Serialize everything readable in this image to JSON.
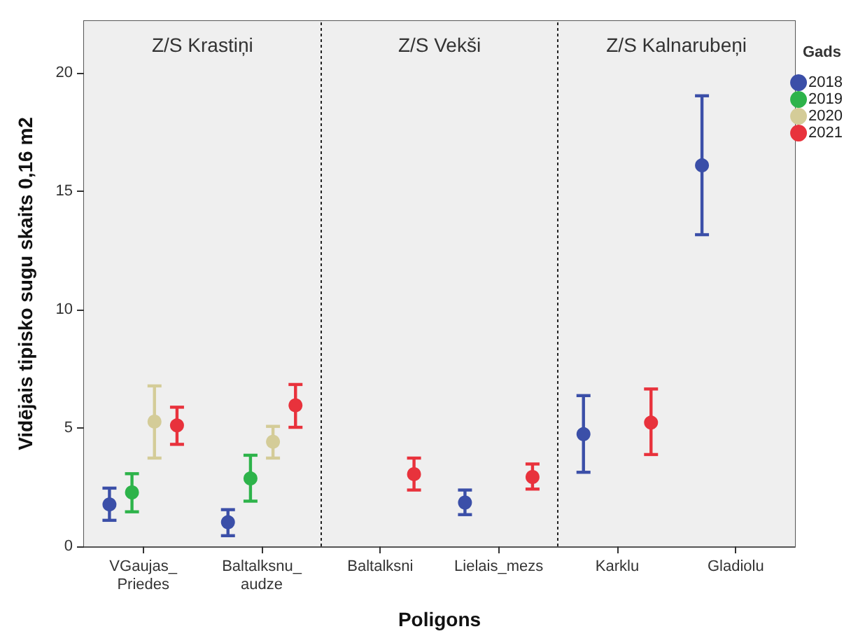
{
  "chart_data": {
    "type": "scatter",
    "xlabel": "Poligons",
    "ylabel": "Vidējais tipisko sugu skaits 0,16 m2",
    "legend_title": "Gads",
    "categories": [
      "VGaujas_\nPriedes",
      "Baltalksnu_\naudze",
      "Baltalksni",
      "Lielais_mezs",
      "Karklu",
      "Gladiolu"
    ],
    "series": [
      {
        "name": "2018",
        "color": "#3b4fa8",
        "values": [
          1.77,
          1.02,
          null,
          1.85,
          4.74,
          16.1
        ],
        "errors": [
          [
            1.1,
            2.46
          ],
          [
            0.45,
            1.55
          ],
          null,
          [
            1.34,
            2.38
          ],
          [
            3.13,
            6.37
          ],
          [
            13.17,
            19.04
          ]
        ]
      },
      {
        "name": "2019",
        "color": "#2db34a",
        "values": [
          2.28,
          2.87,
          null,
          null,
          null,
          null
        ],
        "errors": [
          [
            1.46,
            3.07
          ],
          [
            1.91,
            3.85
          ],
          null,
          null,
          null,
          null
        ]
      },
      {
        "name": "2020",
        "color": "#d4cc98",
        "values": [
          5.27,
          4.42,
          null,
          null,
          null,
          null
        ],
        "errors": [
          [
            3.73,
            6.78
          ],
          [
            3.73,
            5.07
          ],
          null,
          null,
          null,
          null
        ]
      },
      {
        "name": "2021",
        "color": "#e8323c",
        "values": [
          5.11,
          5.96,
          3.05,
          2.93,
          5.23,
          null
        ],
        "errors": [
          [
            4.31,
            5.88
          ],
          [
            5.03,
            6.84
          ],
          [
            2.38,
            3.73
          ],
          [
            2.42,
            3.48
          ],
          [
            3.88,
            6.65
          ],
          null
        ]
      }
    ],
    "bands": [
      {
        "axis": "x",
        "from": "VGaujas_\nPriedes",
        "to": "Baltalksnu_\naudze",
        "label": "Z/S Krastiņi",
        "color": "#efefef"
      },
      {
        "axis": "x",
        "from": "Baltalksni",
        "to": "Lielais_mezs",
        "label": "Z/S Vekši",
        "color": "#efefef"
      },
      {
        "axis": "x",
        "from": "Karklu",
        "to": "Gladiolu",
        "label": "Z/S Kalnarubeņi",
        "color": "#efefef"
      }
    ],
    "ylim": [
      0,
      22.2
    ],
    "yticks": [
      0,
      5,
      10,
      15,
      20
    ],
    "grid": false,
    "legend": "right",
    "marker": "circle"
  }
}
